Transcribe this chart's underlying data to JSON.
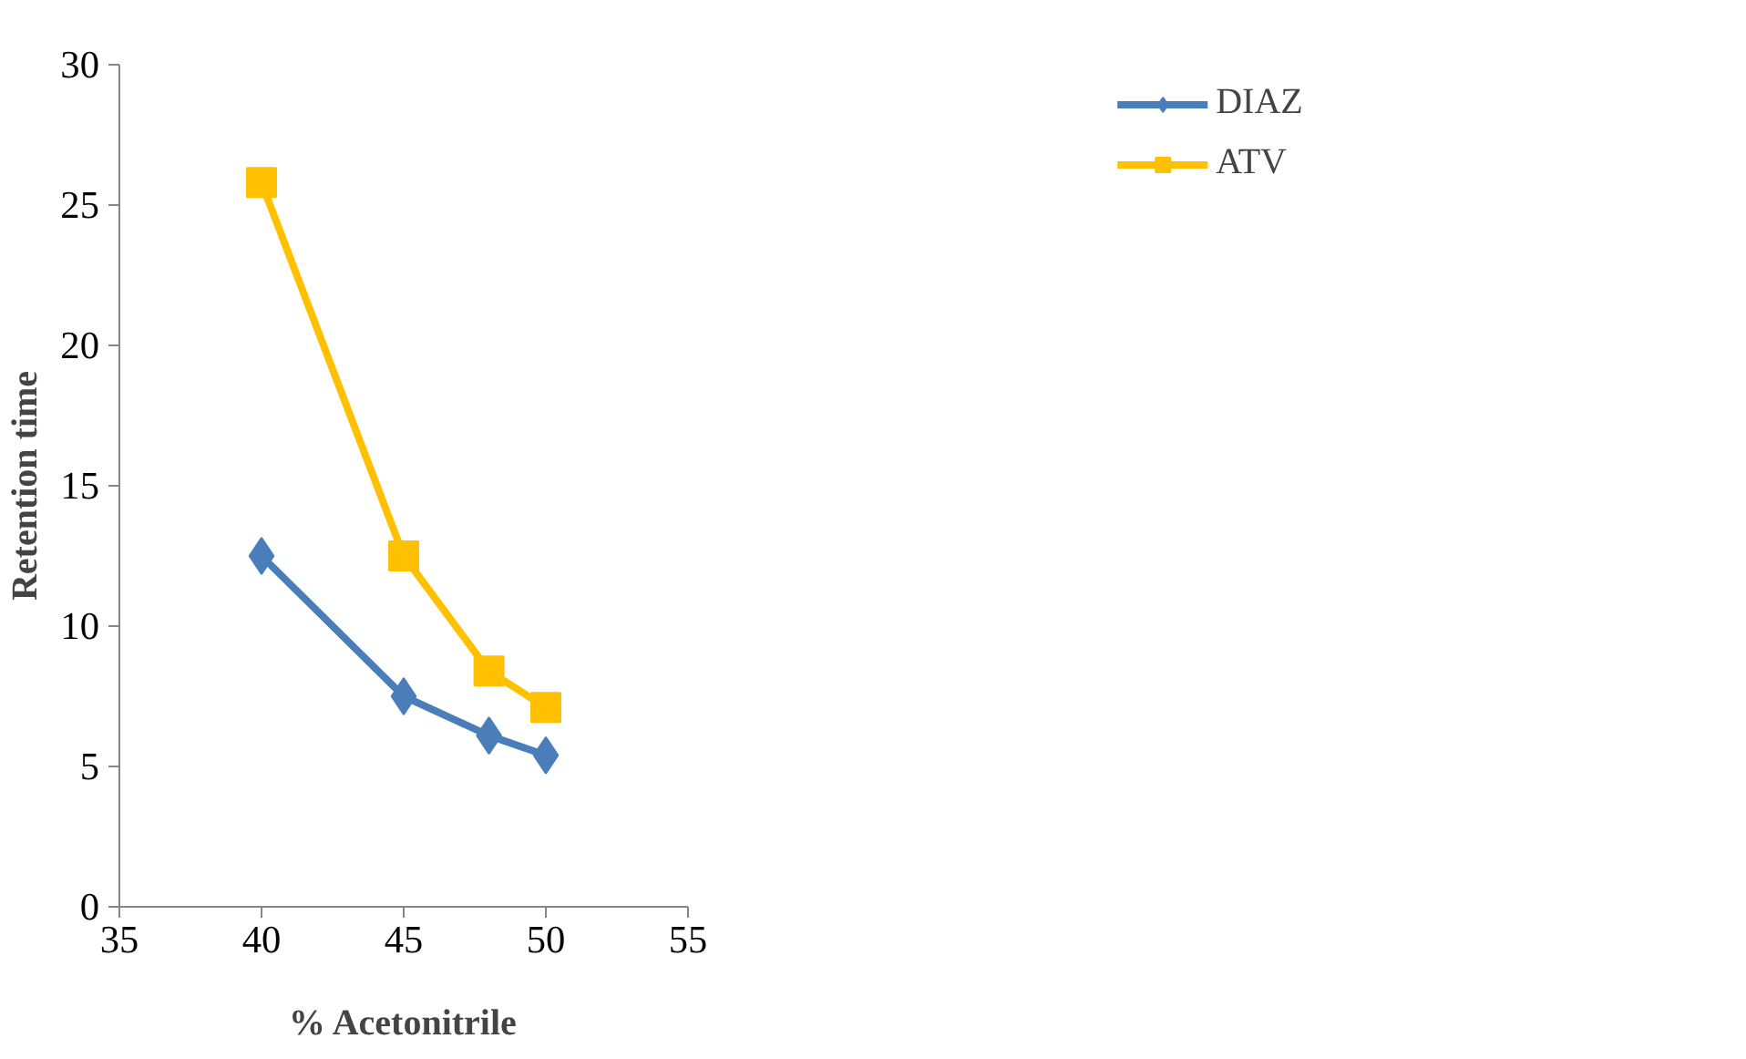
{
  "chart_data": {
    "type": "line",
    "xlabel": "% Acetonitrile",
    "ylabel": "Retention time",
    "xlim": [
      35,
      55
    ],
    "xticks": [
      35,
      40,
      45,
      50,
      55
    ],
    "ylim": [
      0,
      30
    ],
    "yticks": [
      0,
      5,
      10,
      15,
      20,
      25,
      30
    ],
    "grid": false,
    "legend": "top right",
    "line_style": "solid",
    "series": [
      {
        "name": "DIAZ",
        "color": "#4a7ebb",
        "marker": "diamond",
        "x": [
          40,
          45,
          48,
          50
        ],
        "values": [
          12.5,
          7.5,
          6.1,
          5.4
        ]
      },
      {
        "name": "ATV",
        "color": "#ffc000",
        "marker": "square",
        "x": [
          40,
          45,
          48,
          50
        ],
        "values": [
          25.8,
          12.5,
          8.4,
          7.1
        ]
      }
    ]
  }
}
